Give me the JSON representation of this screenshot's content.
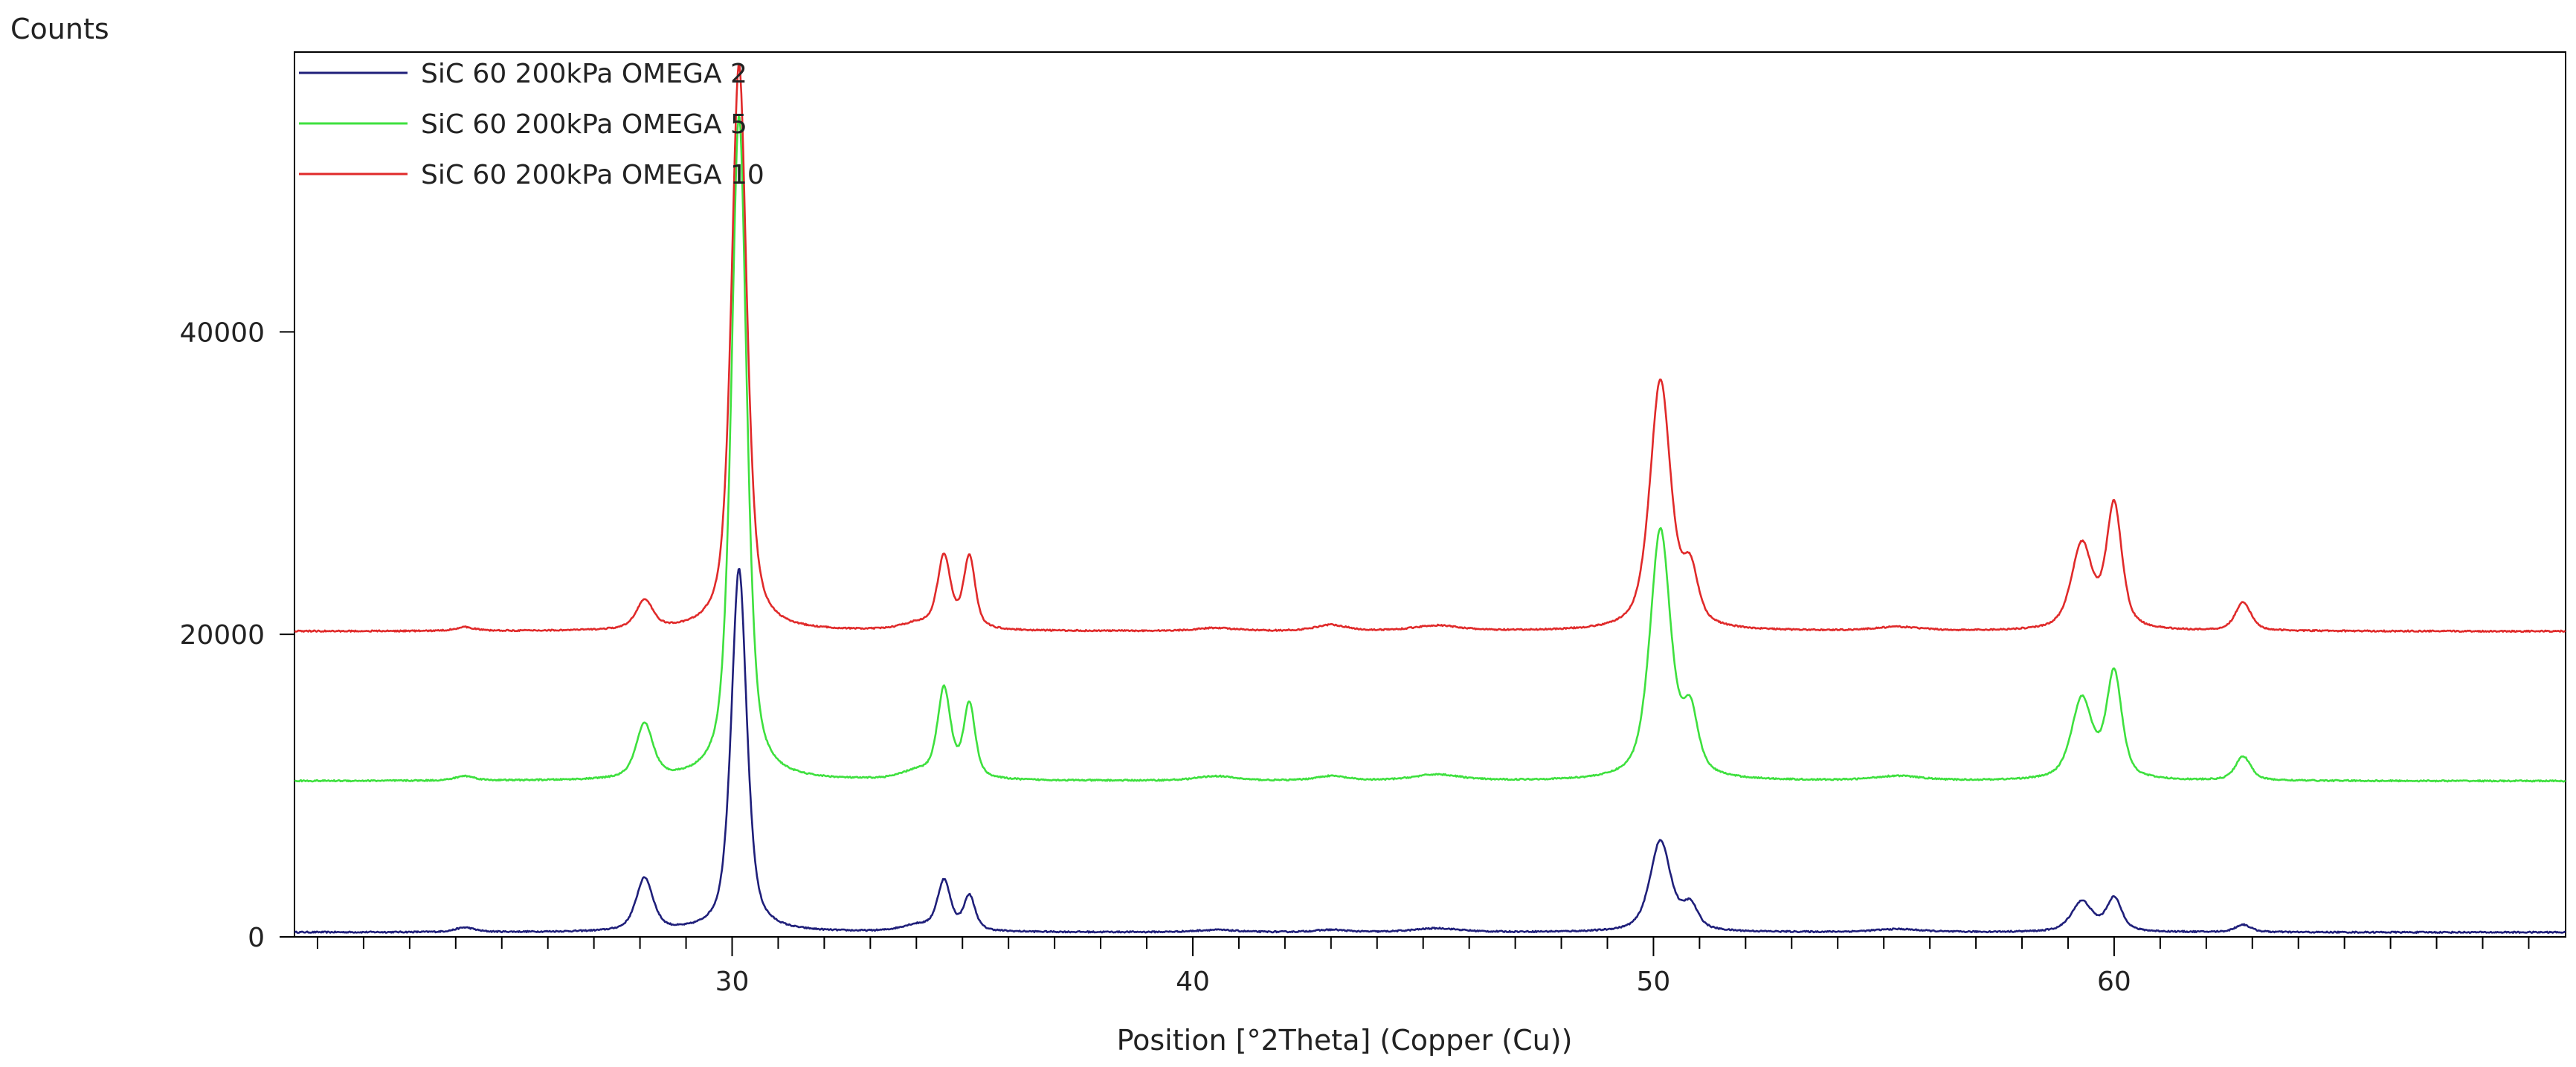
{
  "chart_data": {
    "type": "line",
    "title": "",
    "ylabel": "Counts",
    "xlabel": "Position [°2Theta] (Copper (Cu))",
    "xlim": [
      20.5,
      69.8
    ],
    "ylim": [
      0,
      58500
    ],
    "x_ticks": [
      30,
      40,
      50,
      60
    ],
    "y_ticks": [
      0,
      20000,
      40000
    ],
    "x_minor_step": 1,
    "grid": false,
    "legend_position": "top-left",
    "series": [
      {
        "name": "SiC 60 200kPa OMEGA 2",
        "color": "#1f1f7a",
        "baseline": 300,
        "peaks": [
          [
            24.2,
            300,
            0.25
          ],
          [
            28.1,
            3500,
            0.22
          ],
          [
            30.15,
            24000,
            0.2
          ],
          [
            34.0,
            400,
            0.4
          ],
          [
            34.6,
            3300,
            0.17
          ],
          [
            35.15,
            2300,
            0.15
          ],
          [
            40.5,
            150,
            0.5
          ],
          [
            43.0,
            150,
            0.4
          ],
          [
            45.3,
            250,
            0.6
          ],
          [
            50.15,
            6000,
            0.27
          ],
          [
            50.8,
            1600,
            0.2
          ],
          [
            55.3,
            200,
            0.6
          ],
          [
            59.3,
            2000,
            0.27
          ],
          [
            60.0,
            2200,
            0.2
          ],
          [
            62.8,
            500,
            0.2
          ]
        ]
      },
      {
        "name": "SiC 60 200kPa OMEGA 5",
        "color": "#3ee03e",
        "baseline": 10300,
        "peaks": [
          [
            24.2,
            300,
            0.25
          ],
          [
            28.1,
            3600,
            0.22
          ],
          [
            30.15,
            44000,
            0.2
          ],
          [
            34.0,
            500,
            0.4
          ],
          [
            34.6,
            5900,
            0.17
          ],
          [
            35.15,
            4900,
            0.15
          ],
          [
            40.5,
            300,
            0.5
          ],
          [
            43.0,
            300,
            0.4
          ],
          [
            45.3,
            400,
            0.6
          ],
          [
            50.15,
            16500,
            0.27
          ],
          [
            50.8,
            4000,
            0.2
          ],
          [
            55.3,
            300,
            0.6
          ],
          [
            59.3,
            5300,
            0.27
          ],
          [
            60.0,
            7000,
            0.2
          ],
          [
            62.8,
            1600,
            0.2
          ]
        ]
      },
      {
        "name": "SiC 60 200kPa OMEGA 10",
        "color": "#e02a2a",
        "baseline": 20200,
        "peaks": [
          [
            24.2,
            250,
            0.25
          ],
          [
            28.1,
            1900,
            0.22
          ],
          [
            30.15,
            37500,
            0.2
          ],
          [
            34.0,
            400,
            0.4
          ],
          [
            34.6,
            4800,
            0.17
          ],
          [
            35.15,
            4800,
            0.15
          ],
          [
            40.5,
            200,
            0.5
          ],
          [
            43.0,
            400,
            0.4
          ],
          [
            45.3,
            350,
            0.6
          ],
          [
            50.15,
            16500,
            0.27
          ],
          [
            50.8,
            3500,
            0.2
          ],
          [
            55.3,
            250,
            0.6
          ],
          [
            59.3,
            5600,
            0.27
          ],
          [
            60.0,
            8200,
            0.2
          ],
          [
            62.8,
            1900,
            0.2
          ]
        ]
      }
    ]
  }
}
